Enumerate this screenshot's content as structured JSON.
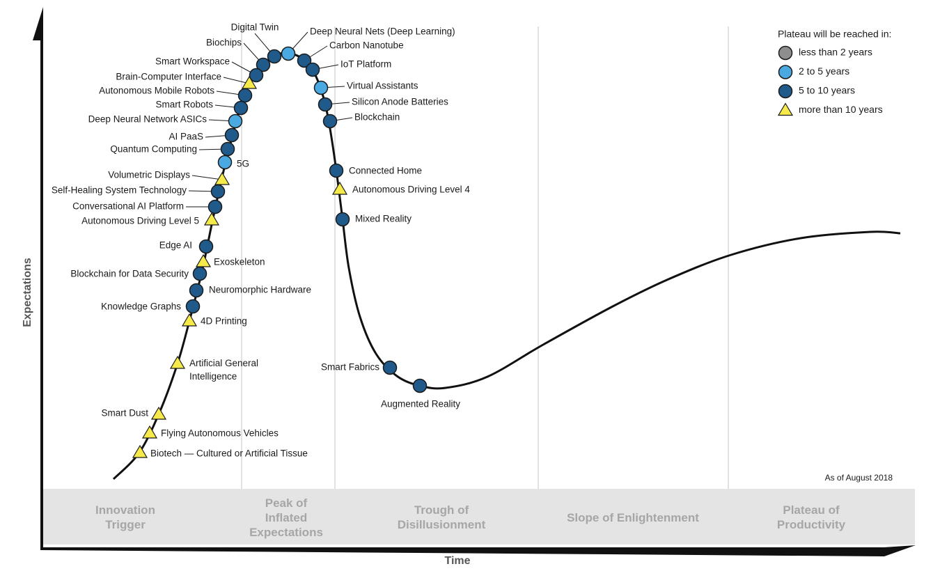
{
  "axes": {
    "y_label": "Expectations",
    "x_label": "Time"
  },
  "legend": {
    "title": "Plateau will be reached in:",
    "items": [
      {
        "label": "less than 2 years",
        "color": "#8e8e8e",
        "shape": "circle"
      },
      {
        "label": "2 to 5 years",
        "color": "#4ba9e1",
        "shape": "circle"
      },
      {
        "label": "5 to 10 years",
        "color": "#1f5a8a",
        "shape": "circle"
      },
      {
        "label": "more than 10 years",
        "color": "#f6e94a",
        "shape": "triangle"
      }
    ]
  },
  "technologies": [
    {
      "label": "Digital Twin",
      "plateau": "5 to 10 years"
    },
    {
      "label": "Deep Neural Nets (Deep Learning)",
      "plateau": "2 to 5 years"
    },
    {
      "label": "Biochips",
      "plateau": "5 to 10 years"
    },
    {
      "label": "Carbon Nanotube",
      "plateau": "5 to 10 years"
    },
    {
      "label": "Smart Workspace",
      "plateau": "5 to 10 years"
    },
    {
      "label": "IoT Platform",
      "plateau": "5 to 10 years"
    },
    {
      "label": "Brain-Computer Interface",
      "plateau": "more than 10 years"
    },
    {
      "label": "Autonomous Mobile Robots",
      "plateau": "5 to 10 years"
    },
    {
      "label": "Virtual Assistants",
      "plateau": "2 to 5 years"
    },
    {
      "label": "Smart Robots",
      "plateau": "5 to 10 years"
    },
    {
      "label": "Silicon Anode Batteries",
      "plateau": "5 to 10 years"
    },
    {
      "label": "Deep Neural Network ASICs",
      "plateau": "2 to 5 years"
    },
    {
      "label": "Blockchain",
      "plateau": "5 to 10 years"
    },
    {
      "label": "AI PaaS",
      "plateau": "5 to 10 years"
    },
    {
      "label": "Quantum Computing",
      "plateau": "5 to 10 years"
    },
    {
      "label": "5G",
      "plateau": "2 to 5 years"
    },
    {
      "label": "Volumetric Displays",
      "plateau": "more than 10 years"
    },
    {
      "label": "Connected Home",
      "plateau": "5 to 10 years"
    },
    {
      "label": "Self-Healing System Technology",
      "plateau": "5 to 10 years"
    },
    {
      "label": "Autonomous Driving Level 4",
      "plateau": "more than 10 years"
    },
    {
      "label": "Conversational AI Platform",
      "plateau": "5 to 10 years"
    },
    {
      "label": "Autonomous Driving Level 5",
      "plateau": "more than 10 years"
    },
    {
      "label": "Mixed Reality",
      "plateau": "5 to 10 years"
    },
    {
      "label": "Edge AI",
      "plateau": "5 to 10 years"
    },
    {
      "label": "Exoskeleton",
      "plateau": "more than 10 years"
    },
    {
      "label": "Blockchain for Data Security",
      "plateau": "5 to 10 years"
    },
    {
      "label": "Neuromorphic Hardware",
      "plateau": "5 to 10 years"
    },
    {
      "label": "Knowledge Graphs",
      "plateau": "5 to 10 years"
    },
    {
      "label": "4D Printing",
      "plateau": "more than 10 years"
    },
    {
      "label": "Artificial General Intelligence",
      "plateau": "more than 10 years"
    },
    {
      "label": "Smart Fabrics",
      "plateau": "5 to 10 years"
    },
    {
      "label": "Augmented Reality",
      "plateau": "5 to 10 years"
    },
    {
      "label": "Smart Dust",
      "plateau": "more than 10 years"
    },
    {
      "label": "Flying Autonomous Vehicles",
      "plateau": "more than 10 years"
    },
    {
      "label": "Biotech — Cultured or Artificial Tissue",
      "plateau": "more than 10 years"
    }
  ],
  "phases": [
    "Innovation Trigger",
    "Peak of Inflated Expectations",
    "Trough of Disillusionment",
    "Slope of Enlightenment",
    "Plateau of Productivity"
  ],
  "note": "As of August 2018"
}
